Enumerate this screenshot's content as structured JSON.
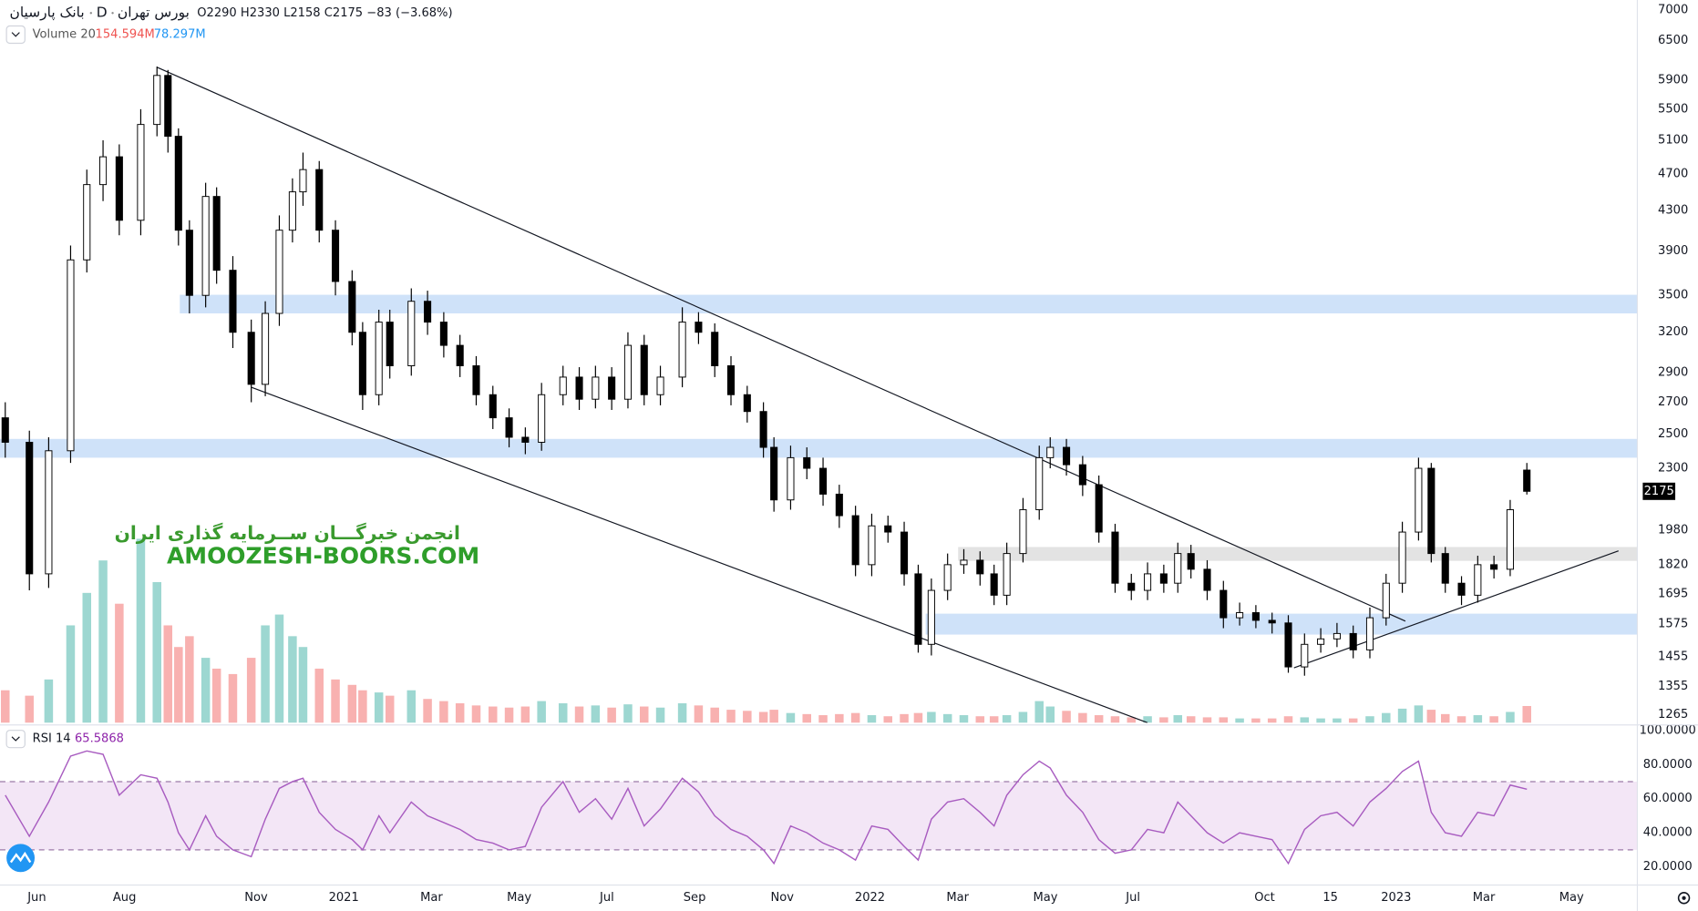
{
  "header": {
    "symbol": "بانک پارسیان",
    "interval": "D",
    "exchange": "بورس تهران",
    "open_label": "O",
    "high_label": "H",
    "low_label": "L",
    "close_label": "C",
    "change": "−83",
    "change_pct": "(−3.68%)",
    "volume_name": "Volume 20",
    "volume_value": "154.594M",
    "volume_ma": "78.297M",
    "rsi_name": "RSI 14",
    "rsi_value": "65.5868",
    "watermark_fa": "انجمن خبرگـــان ســرمایه گذاری ایران",
    "watermark_en": "AMOOZESH-BOORS.COM"
  },
  "chart_data": {
    "type": "candlestick",
    "log_scale": true,
    "x": [
      0.28,
      0.83,
      1.27,
      1.77,
      2.14,
      2.51,
      2.88,
      3.37,
      3.74,
      3.99,
      4.23,
      4.48,
      4.85,
      5.1,
      5.47,
      5.89,
      6.21,
      6.53,
      6.83,
      7.07,
      7.44,
      7.81,
      8.19,
      8.43,
      8.8,
      9.05,
      9.54,
      9.91,
      10.28,
      10.65,
      11.02,
      11.4,
      11.77,
      12.14,
      12.51,
      13.0,
      13.37,
      13.74,
      14.11,
      14.48,
      14.85,
      15.22,
      15.72,
      16.09,
      16.46,
      16.83,
      17.2,
      17.57,
      17.81,
      18.19,
      18.56,
      18.93,
      19.3,
      19.67,
      20.04,
      20.41,
      20.78,
      21.1,
      21.4,
      21.77,
      22.14,
      22.51,
      22.83,
      23.12,
      23.49,
      23.86,
      24.11,
      24.48,
      24.85,
      25.22,
      25.59,
      25.96,
      26.33,
      26.7,
      27.02,
      27.32,
      27.69,
      28.06,
      28.43,
      28.8,
      29.17,
      29.54,
      29.91,
      30.28,
      30.65,
      31.02,
      31.4,
      31.77,
      32.14,
      32.51,
      32.8,
      33.12,
      33.49,
      33.86,
      34.23,
      34.6,
      34.98
    ],
    "open": [
      2600,
      2450,
      1780,
      2400,
      3815,
      4580,
      4900,
      4200,
      5300,
      5970,
      5150,
      4100,
      3500,
      4450,
      3720,
      3200,
      2820,
      3350,
      4100,
      4500,
      4750,
      4100,
      3620,
      3200,
      2750,
      3280,
      2950,
      3450,
      3280,
      3100,
      2950,
      2750,
      2600,
      2480,
      2450,
      2750,
      2870,
      2720,
      2870,
      2720,
      3100,
      2750,
      2870,
      3280,
      3200,
      2950,
      2750,
      2640,
      2420,
      2130,
      2360,
      2300,
      2160,
      2050,
      1820,
      2000,
      1970,
      1780,
      1500,
      1710,
      1820,
      1840,
      1780,
      1690,
      1870,
      2080,
      2360,
      2420,
      2320,
      2210,
      1970,
      1740,
      1710,
      1780,
      1740,
      1870,
      1800,
      1710,
      1600,
      1620,
      1590,
      1580,
      1420,
      1500,
      1520,
      1540,
      1480,
      1600,
      1740,
      1970,
      2300,
      1870,
      1740,
      1690,
      1820,
      1800,
      2290
    ],
    "high": [
      2700,
      2520,
      2480,
      3950,
      4750,
      5100,
      5050,
      5500,
      6100,
      6050,
      5250,
      4200,
      4600,
      4550,
      3850,
      3300,
      3450,
      4250,
      4650,
      4950,
      4850,
      4200,
      3720,
      3280,
      3380,
      3380,
      3560,
      3540,
      3360,
      3180,
      3020,
      2810,
      2660,
      2540,
      2830,
      2950,
      2940,
      2950,
      2940,
      3200,
      3180,
      2950,
      3400,
      3360,
      3270,
      3020,
      2810,
      2700,
      2480,
      2430,
      2420,
      2360,
      2210,
      2100,
      2060,
      2050,
      2020,
      1820,
      1760,
      1870,
      1890,
      1880,
      1820,
      1920,
      2140,
      2430,
      2480,
      2470,
      2370,
      2260,
      2010,
      1780,
      1830,
      1820,
      1920,
      1910,
      1840,
      1750,
      1660,
      1650,
      1620,
      1610,
      1540,
      1560,
      1580,
      1570,
      1640,
      1780,
      2020,
      2360,
      2330,
      1900,
      1770,
      1860,
      1860,
      2130,
      2330
    ],
    "low": [
      2360,
      1710,
      1720,
      2330,
      3700,
      4400,
      4050,
      4050,
      5150,
      4950,
      3950,
      3350,
      3400,
      3600,
      3080,
      2700,
      2740,
      3250,
      3980,
      4350,
      3980,
      3500,
      3100,
      2650,
      2680,
      2860,
      2880,
      3180,
      3010,
      2870,
      2680,
      2530,
      2420,
      2380,
      2400,
      2680,
      2650,
      2660,
      2650,
      2660,
      2680,
      2680,
      2800,
      3110,
      2870,
      2680,
      2570,
      2360,
      2070,
      2080,
      2240,
      2100,
      1990,
      1770,
      1770,
      1920,
      1730,
      1470,
      1460,
      1670,
      1780,
      1730,
      1650,
      1650,
      1830,
      2030,
      2300,
      2260,
      2150,
      1920,
      1700,
      1670,
      1670,
      1700,
      1700,
      1760,
      1670,
      1560,
      1570,
      1560,
      1540,
      1400,
      1390,
      1470,
      1490,
      1450,
      1450,
      1570,
      1700,
      1930,
      1830,
      1700,
      1650,
      1660,
      1760,
      1770,
      2158
    ],
    "close": [
      2450,
      1780,
      2400,
      3815,
      4580,
      4900,
      4200,
      5300,
      5970,
      5150,
      4100,
      3500,
      4450,
      3720,
      3200,
      2820,
      3350,
      4100,
      4500,
      4750,
      4100,
      3620,
      3200,
      2750,
      3280,
      2950,
      3450,
      3280,
      3100,
      2950,
      2750,
      2600,
      2480,
      2450,
      2750,
      2870,
      2720,
      2870,
      2720,
      3100,
      2750,
      2870,
      3280,
      3200,
      2950,
      2750,
      2640,
      2420,
      2130,
      2360,
      2300,
      2160,
      2050,
      1820,
      2000,
      1970,
      1780,
      1500,
      1710,
      1820,
      1840,
      1780,
      1690,
      1870,
      2080,
      2360,
      2420,
      2320,
      2210,
      1970,
      1740,
      1710,
      1780,
      1740,
      1870,
      1800,
      1710,
      1600,
      1620,
      1590,
      1580,
      1420,
      1500,
      1520,
      1540,
      1480,
      1600,
      1740,
      1970,
      2300,
      1870,
      1740,
      1690,
      1820,
      1800,
      2080,
      2175
    ],
    "volume": [
      300,
      250,
      400,
      900,
      1200,
      1500,
      1100,
      1700,
      1300,
      900,
      700,
      800,
      600,
      500,
      450,
      600,
      900,
      1000,
      800,
      700,
      500,
      400,
      350,
      300,
      280,
      250,
      300,
      220,
      200,
      180,
      160,
      150,
      140,
      150,
      200,
      180,
      150,
      160,
      140,
      170,
      150,
      140,
      180,
      160,
      140,
      120,
      110,
      100,
      120,
      90,
      80,
      70,
      80,
      90,
      70,
      60,
      80,
      90,
      100,
      80,
      70,
      60,
      60,
      70,
      100,
      200,
      150,
      110,
      90,
      70,
      60,
      50,
      60,
      50,
      70,
      60,
      50,
      50,
      40,
      40,
      40,
      60,
      50,
      40,
      40,
      40,
      60,
      90,
      130,
      160,
      120,
      80,
      60,
      70,
      60,
      100,
      154.594
    ],
    "rsi": [
      62,
      38,
      58,
      85,
      88,
      86,
      62,
      74,
      72,
      58,
      40,
      30,
      50,
      38,
      30,
      26,
      48,
      66,
      70,
      72,
      52,
      42,
      36,
      30,
      50,
      40,
      58,
      50,
      46,
      42,
      36,
      34,
      30,
      32,
      55,
      70,
      52,
      60,
      48,
      66,
      44,
      54,
      72,
      64,
      50,
      42,
      38,
      30,
      22,
      44,
      40,
      34,
      30,
      24,
      44,
      42,
      32,
      24,
      48,
      58,
      60,
      52,
      44,
      62,
      74,
      82,
      78,
      62,
      52,
      36,
      28,
      30,
      42,
      40,
      58,
      50,
      40,
      34,
      40,
      38,
      36,
      22,
      42,
      50,
      52,
      44,
      58,
      66,
      76,
      82,
      52,
      40,
      38,
      52,
      50,
      68,
      65.5868
    ],
    "xlim": [
      0.16,
      37.5
    ],
    "ylim": [
      1240,
      7170
    ],
    "yticks": [
      7000,
      6500,
      5900,
      5500,
      5100,
      4700,
      4300,
      3900,
      3500,
      3200,
      2900,
      2700,
      2500,
      2300,
      1980,
      1820,
      1695,
      1575,
      1455,
      1355,
      1265
    ],
    "xticks": [
      {
        "value": 1,
        "label": "Jun"
      },
      {
        "value": 3,
        "label": "Aug"
      },
      {
        "value": 6,
        "label": "Nov"
      },
      {
        "value": 8,
        "label": "2021"
      },
      {
        "value": 10,
        "label": "Mar"
      },
      {
        "value": 12,
        "label": "May"
      },
      {
        "value": 14,
        "label": "Jul"
      },
      {
        "value": 16,
        "label": "Sep"
      },
      {
        "value": 18,
        "label": "Nov"
      },
      {
        "value": 20,
        "label": "2022"
      },
      {
        "value": 22,
        "label": "Mar"
      },
      {
        "value": 24,
        "label": "May"
      },
      {
        "value": 26,
        "label": "Jul"
      },
      {
        "value": 29,
        "label": "Oct"
      },
      {
        "value": 30.5,
        "label": "15"
      },
      {
        "value": 32,
        "label": "2023"
      },
      {
        "value": 34,
        "label": "Mar"
      },
      {
        "value": 36,
        "label": "May"
      }
    ],
    "volume_ylim": [
      0,
      2500
    ],
    "rsi_ylim": [
      10,
      102
    ],
    "rsi_ticks": [
      {
        "value": 100,
        "label": "100.0000"
      },
      {
        "value": 80,
        "label": "80.0000"
      },
      {
        "value": 60,
        "label": "60.0000"
      },
      {
        "value": 40,
        "label": "40.0000"
      },
      {
        "value": 20,
        "label": "20.0000"
      }
    ],
    "rsi_bands": [
      30,
      70
    ],
    "zones": [
      {
        "x": [
          4.26,
          37.5
        ],
        "y": [
          3350,
          3505
        ],
        "color": "#cfe2f9"
      },
      {
        "x": [
          0.16,
          37.5
        ],
        "y": [
          2360,
          2470
        ],
        "color": "#cfe2f9"
      },
      {
        "x": [
          22.01,
          37.5
        ],
        "y": [
          1837,
          1900
        ],
        "color": "#e3e3e3"
      },
      {
        "x": [
          21.27,
          37.5
        ],
        "y": [
          1536,
          1616
        ],
        "color": "#cfe2f9"
      }
    ],
    "trendlines": [
      {
        "x": [
          3.74,
          32.21
        ],
        "y": [
          6090,
          1587
        ]
      },
      {
        "x": [
          5.89,
          26.33
        ],
        "y": [
          2800,
          1240
        ]
      },
      {
        "x": [
          29.67,
          37.07
        ],
        "y": [
          1417,
          1882
        ]
      }
    ],
    "colors": {
      "candle": "#000000",
      "up_body": "#ffffff",
      "up_volume": "#26a69a",
      "down_volume": "#ef5350",
      "rsi": "#a85cc0",
      "rsi_band": "#f3e6f6",
      "price_tag": "#000000"
    }
  }
}
